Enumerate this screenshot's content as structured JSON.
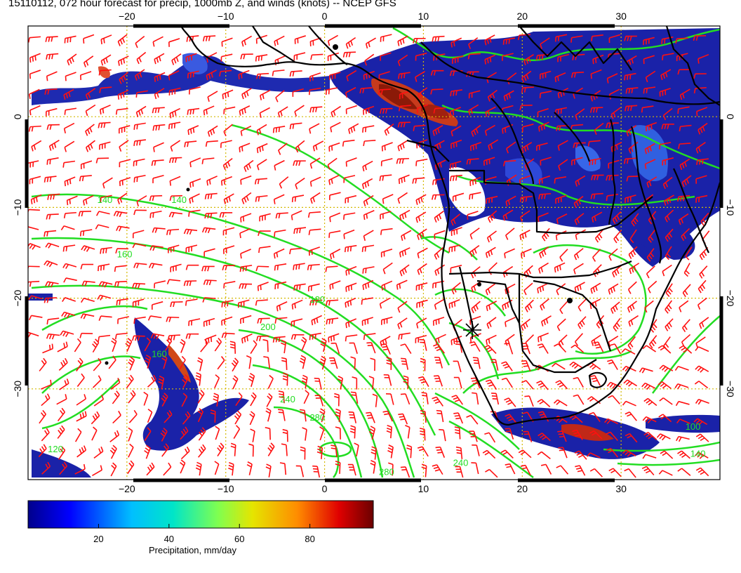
{
  "title": "15110112, 072 hour forecast for precip, 1000mb Z, and winds (knots) -- NCEP GFS",
  "map": {
    "lon_ticks": [
      {
        "value": -20,
        "label": "−20"
      },
      {
        "value": -10,
        "label": "−10"
      },
      {
        "value": 0,
        "label": "0"
      },
      {
        "value": 10,
        "label": "10"
      },
      {
        "value": 20,
        "label": "20"
      },
      {
        "value": 30,
        "label": "30"
      }
    ],
    "lat_ticks": [
      {
        "value": 0,
        "label": "0"
      },
      {
        "value": -10,
        "label": "−10"
      },
      {
        "value": -20,
        "label": "−20"
      },
      {
        "value": -30,
        "label": "−30"
      }
    ],
    "lon_range": [
      -30,
      40
    ],
    "lat_range": [
      -40,
      10
    ],
    "contour_labels": [
      {
        "text": "140",
        "lon": -23,
        "lat": -9.5
      },
      {
        "text": "140",
        "lon": -15.5,
        "lat": -9.5
      },
      {
        "text": "160",
        "lon": -21,
        "lat": -15.5
      },
      {
        "text": "180",
        "lon": -1.5,
        "lat": -20.5
      },
      {
        "text": "200",
        "lon": -6.5,
        "lat": -23.5
      },
      {
        "text": "240",
        "lon": -4.5,
        "lat": -31.5
      },
      {
        "text": "280",
        "lon": -1.5,
        "lat": -33.5
      },
      {
        "text": "280",
        "lon": 5.5,
        "lat": -39.5
      },
      {
        "text": "240",
        "lon": 13,
        "lat": -38.5
      },
      {
        "text": "160",
        "lon": -17.5,
        "lat": -26.5
      },
      {
        "text": "140",
        "lon": 37,
        "lat": -37.5
      },
      {
        "text": "100",
        "lon": 36.5,
        "lat": -34.5
      },
      {
        "text": "120",
        "lon": -28,
        "lat": -37
      }
    ],
    "colors": {
      "contour": "#22dd22",
      "barb": "#ff1010",
      "coast": "#000000",
      "grid": "#d4b800",
      "precip_low": "#1a1aa0",
      "precip_high": "#8b0000"
    },
    "icons": {
      "marker": "cross-marker-icon"
    }
  },
  "colorbar": {
    "ticks": [
      {
        "value": 20,
        "label": "20"
      },
      {
        "value": 40,
        "label": "40"
      },
      {
        "value": 60,
        "label": "60"
      },
      {
        "value": 80,
        "label": "80"
      }
    ],
    "range": [
      0,
      98
    ],
    "title": "Precipitation, mm/day",
    "colormap": [
      "#00008b",
      "#0000ff",
      "#00bfff",
      "#00e5c8",
      "#7fff50",
      "#e5e500",
      "#ff8c00",
      "#e00000",
      "#6b0000"
    ]
  }
}
